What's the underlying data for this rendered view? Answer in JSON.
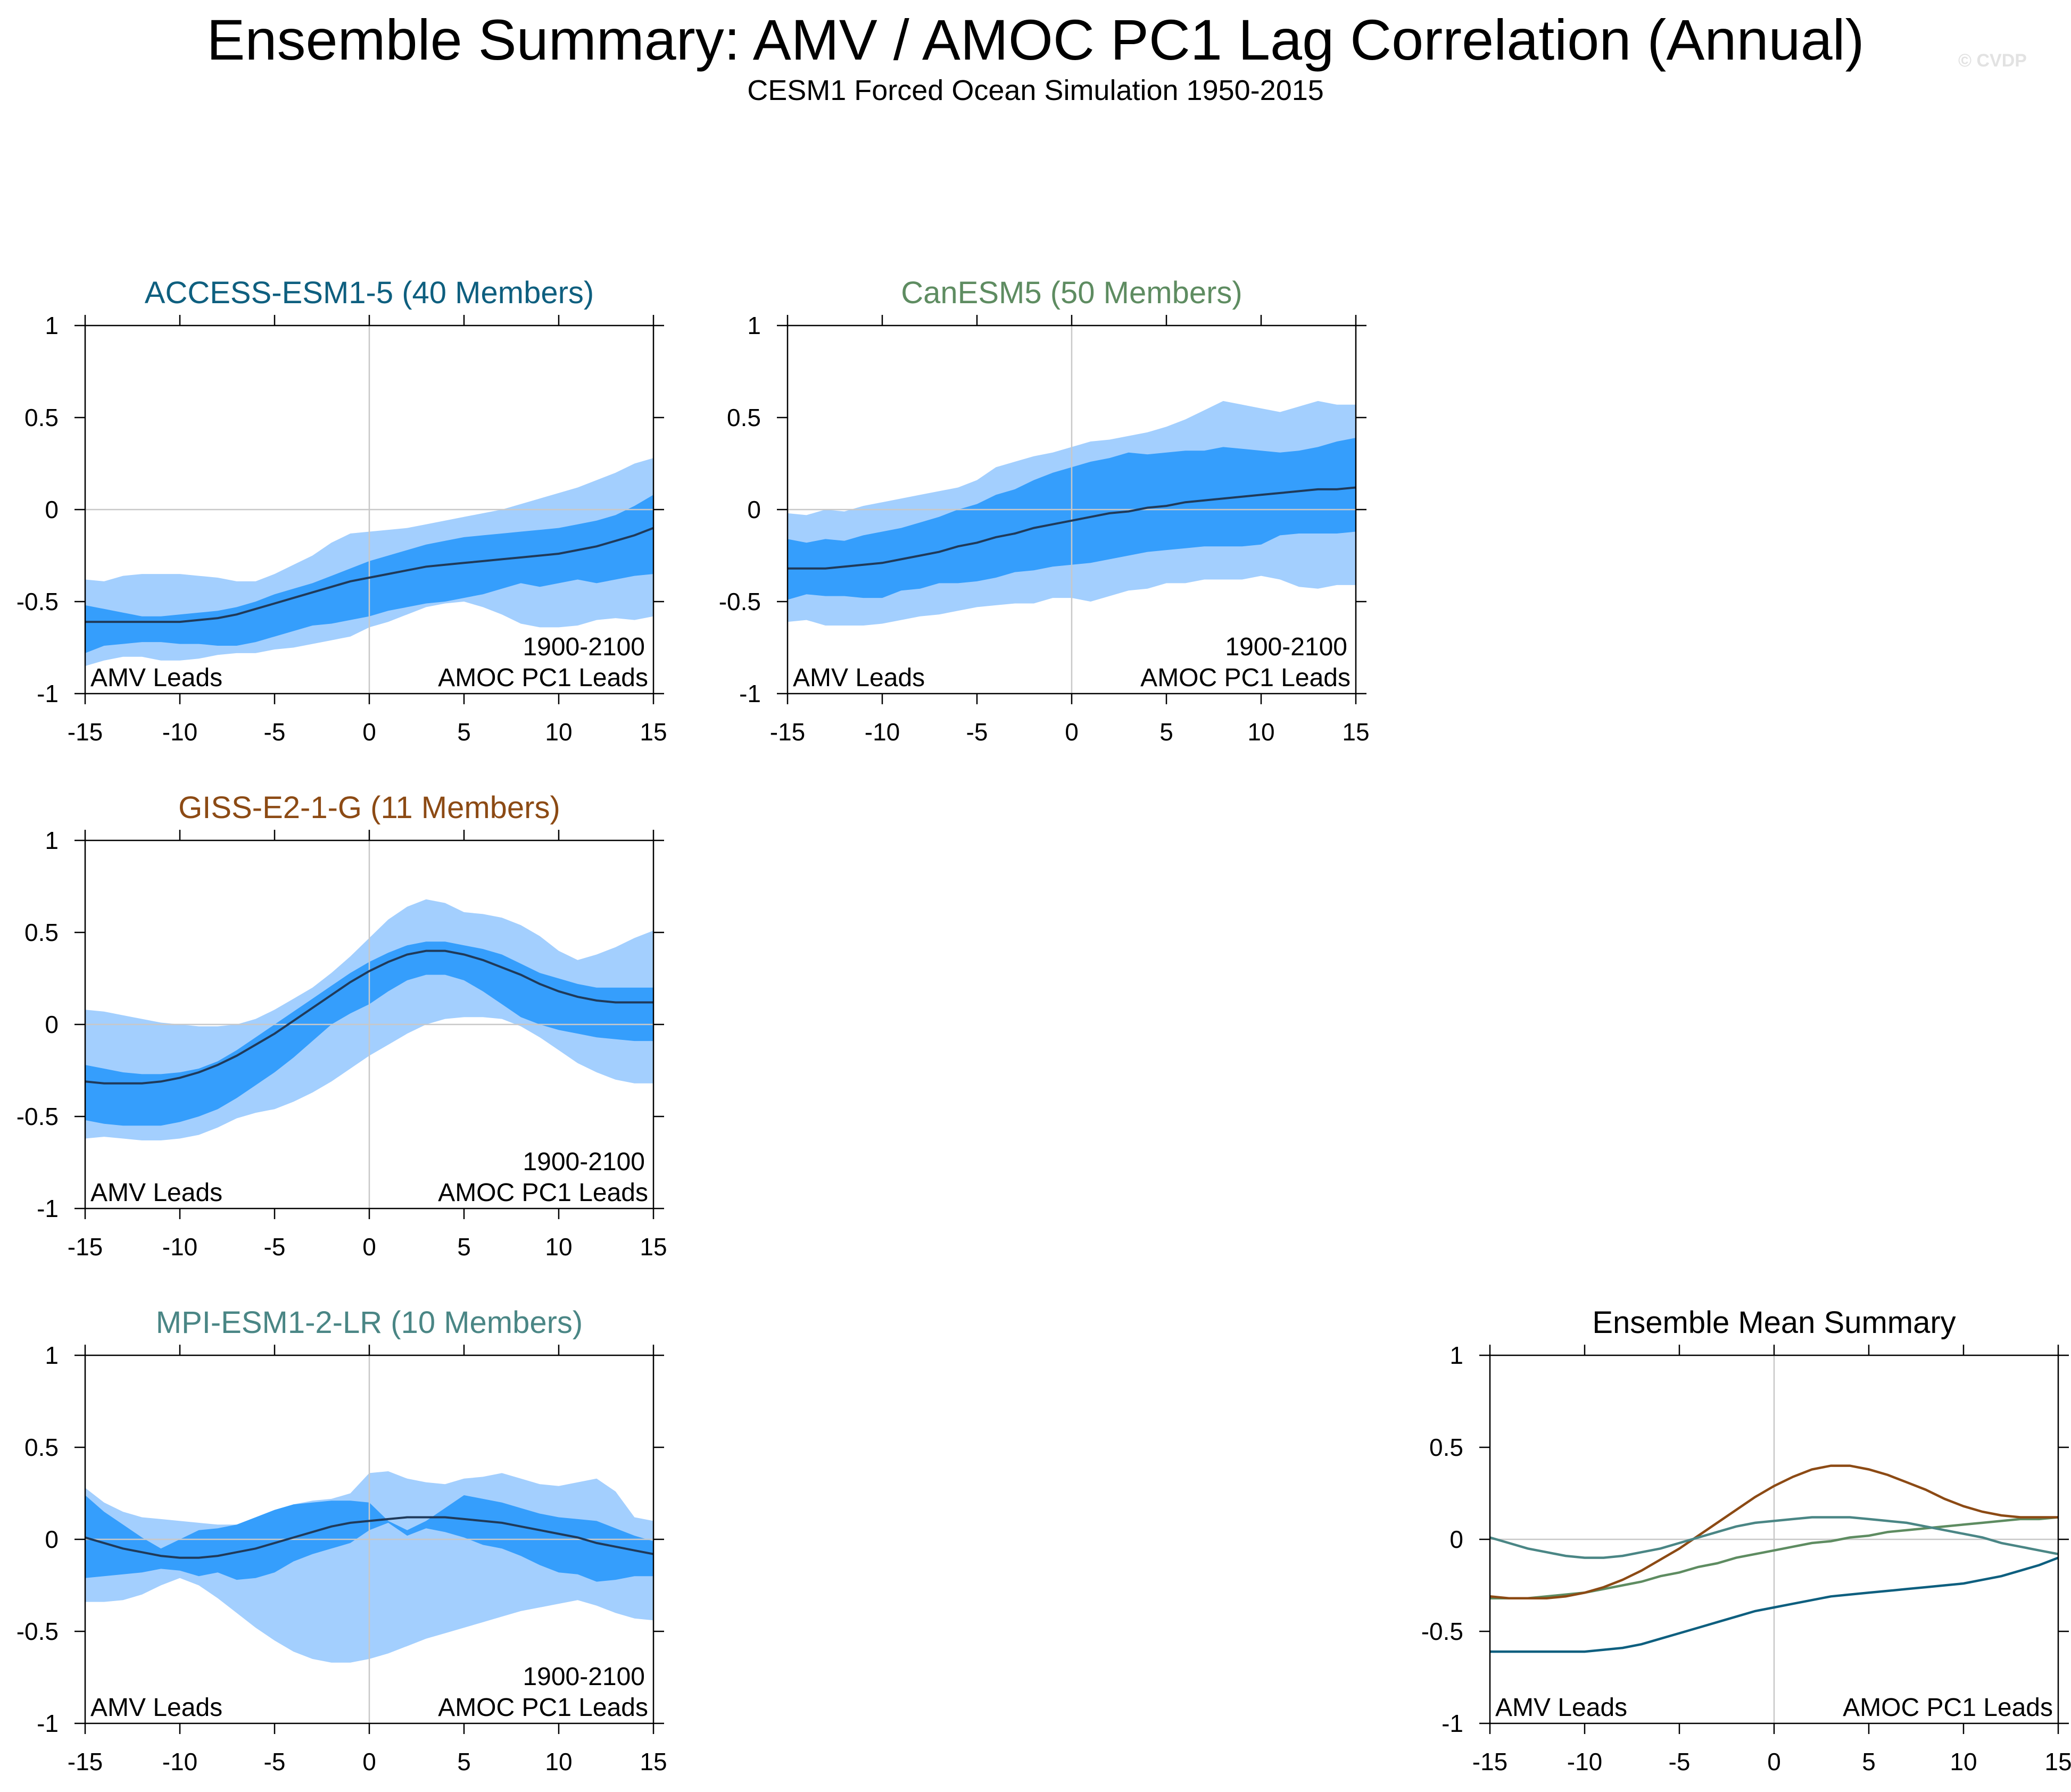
{
  "title": "Ensemble Summary: AMV / AMOC PC1 Lag Correlation (Annual)",
  "subtitle": "CESM1 Forced Ocean Simulation 1950-2015",
  "watermark": "© CVDP",
  "colors": {
    "outer_band": "#a3cffe",
    "inner_band": "#359efc",
    "mean_line": "#1f3a5a",
    "zero_line": "#c8c8c8",
    "frame": "#000000"
  },
  "chart_data": [
    {
      "id": "access",
      "type": "area",
      "title": "ACCESS-ESM1-5 (40 Members)",
      "title_color": "#0e5f7f",
      "period_label": "1900-2100",
      "left_label": "AMV Leads",
      "right_label": "AMOC PC1 Leads",
      "xlim": [
        -15,
        15
      ],
      "ylim": [
        -1,
        1
      ],
      "xticks": [
        -15,
        -10,
        -5,
        0,
        5,
        10,
        15
      ],
      "yticks": [
        1,
        0.5,
        0,
        -0.5,
        -1
      ],
      "x": [
        -15,
        -14,
        -13,
        -12,
        -11,
        -10,
        -9,
        -8,
        -7,
        -6,
        -5,
        -4,
        -3,
        -2,
        -1,
        0,
        1,
        2,
        3,
        4,
        5,
        6,
        7,
        8,
        9,
        10,
        11,
        12,
        13,
        14,
        15
      ],
      "outer_upper": [
        -0.38,
        -0.39,
        -0.36,
        -0.35,
        -0.35,
        -0.35,
        -0.36,
        -0.37,
        -0.39,
        -0.39,
        -0.35,
        -0.3,
        -0.25,
        -0.18,
        -0.13,
        -0.12,
        -0.11,
        -0.1,
        -0.08,
        -0.06,
        -0.04,
        -0.02,
        0.0,
        0.03,
        0.06,
        0.09,
        0.12,
        0.16,
        0.2,
        0.25,
        0.28
      ],
      "inner_upper": [
        -0.52,
        -0.54,
        -0.56,
        -0.58,
        -0.58,
        -0.57,
        -0.56,
        -0.55,
        -0.53,
        -0.5,
        -0.46,
        -0.43,
        -0.4,
        -0.36,
        -0.32,
        -0.28,
        -0.25,
        -0.22,
        -0.19,
        -0.17,
        -0.15,
        -0.14,
        -0.13,
        -0.12,
        -0.11,
        -0.1,
        -0.08,
        -0.06,
        -0.03,
        0.02,
        0.08
      ],
      "inner_lower": [
        -0.78,
        -0.74,
        -0.73,
        -0.72,
        -0.72,
        -0.73,
        -0.73,
        -0.74,
        -0.74,
        -0.72,
        -0.69,
        -0.66,
        -0.63,
        -0.62,
        -0.6,
        -0.58,
        -0.55,
        -0.53,
        -0.51,
        -0.5,
        -0.48,
        -0.46,
        -0.43,
        -0.4,
        -0.42,
        -0.4,
        -0.38,
        -0.4,
        -0.38,
        -0.36,
        -0.35
      ],
      "outer_lower": [
        -0.85,
        -0.82,
        -0.8,
        -0.8,
        -0.82,
        -0.82,
        -0.81,
        -0.79,
        -0.78,
        -0.78,
        -0.76,
        -0.75,
        -0.73,
        -0.71,
        -0.69,
        -0.64,
        -0.61,
        -0.57,
        -0.53,
        -0.51,
        -0.5,
        -0.53,
        -0.57,
        -0.62,
        -0.64,
        -0.64,
        -0.63,
        -0.6,
        -0.59,
        -0.6,
        -0.58
      ],
      "mean": [
        -0.61,
        -0.61,
        -0.61,
        -0.61,
        -0.61,
        -0.61,
        -0.6,
        -0.59,
        -0.57,
        -0.54,
        -0.51,
        -0.48,
        -0.45,
        -0.42,
        -0.39,
        -0.37,
        -0.35,
        -0.33,
        -0.31,
        -0.3,
        -0.29,
        -0.28,
        -0.27,
        -0.26,
        -0.25,
        -0.24,
        -0.22,
        -0.2,
        -0.17,
        -0.14,
        -0.1
      ]
    },
    {
      "id": "canesm",
      "type": "area",
      "title": "CanESM5 (50 Members)",
      "title_color": "#5e8c61",
      "period_label": "1900-2100",
      "left_label": "AMV Leads",
      "right_label": "AMOC PC1 Leads",
      "xlim": [
        -15,
        15
      ],
      "ylim": [
        -1,
        1
      ],
      "xticks": [
        -15,
        -10,
        -5,
        0,
        5,
        10,
        15
      ],
      "yticks": [
        1,
        0.5,
        0,
        -0.5,
        -1
      ],
      "x": [
        -15,
        -14,
        -13,
        -12,
        -11,
        -10,
        -9,
        -8,
        -7,
        -6,
        -5,
        -4,
        -3,
        -2,
        -1,
        0,
        1,
        2,
        3,
        4,
        5,
        6,
        7,
        8,
        9,
        10,
        11,
        12,
        13,
        14,
        15
      ],
      "outer_upper": [
        -0.02,
        -0.03,
        0.0,
        -0.01,
        0.02,
        0.04,
        0.06,
        0.08,
        0.1,
        0.12,
        0.16,
        0.23,
        0.26,
        0.29,
        0.31,
        0.34,
        0.37,
        0.38,
        0.4,
        0.42,
        0.45,
        0.49,
        0.54,
        0.59,
        0.57,
        0.55,
        0.53,
        0.56,
        0.59,
        0.57,
        0.57
      ],
      "inner_upper": [
        -0.16,
        -0.18,
        -0.16,
        -0.17,
        -0.14,
        -0.12,
        -0.1,
        -0.07,
        -0.04,
        0.0,
        0.03,
        0.08,
        0.11,
        0.16,
        0.2,
        0.23,
        0.26,
        0.28,
        0.31,
        0.3,
        0.31,
        0.32,
        0.32,
        0.34,
        0.33,
        0.32,
        0.31,
        0.32,
        0.34,
        0.37,
        0.39
      ],
      "inner_lower": [
        -0.49,
        -0.46,
        -0.47,
        -0.47,
        -0.48,
        -0.48,
        -0.44,
        -0.43,
        -0.4,
        -0.4,
        -0.39,
        -0.37,
        -0.34,
        -0.33,
        -0.31,
        -0.3,
        -0.29,
        -0.27,
        -0.25,
        -0.23,
        -0.22,
        -0.21,
        -0.2,
        -0.2,
        -0.2,
        -0.19,
        -0.14,
        -0.13,
        -0.13,
        -0.13,
        -0.12
      ],
      "outer_lower": [
        -0.61,
        -0.6,
        -0.63,
        -0.63,
        -0.63,
        -0.62,
        -0.6,
        -0.58,
        -0.57,
        -0.55,
        -0.53,
        -0.52,
        -0.51,
        -0.51,
        -0.48,
        -0.48,
        -0.5,
        -0.47,
        -0.44,
        -0.43,
        -0.4,
        -0.4,
        -0.38,
        -0.38,
        -0.38,
        -0.36,
        -0.38,
        -0.42,
        -0.43,
        -0.41,
        -0.41
      ],
      "mean": [
        -0.32,
        -0.32,
        -0.32,
        -0.31,
        -0.3,
        -0.29,
        -0.27,
        -0.25,
        -0.23,
        -0.2,
        -0.18,
        -0.15,
        -0.13,
        -0.1,
        -0.08,
        -0.06,
        -0.04,
        -0.02,
        -0.01,
        0.01,
        0.02,
        0.04,
        0.05,
        0.06,
        0.07,
        0.08,
        0.09,
        0.1,
        0.11,
        0.11,
        0.12
      ]
    },
    {
      "id": "giss",
      "type": "area",
      "title": "GISS-E2-1-G (11 Members)",
      "title_color": "#8c4a14",
      "period_label": "1900-2100",
      "left_label": "AMV Leads",
      "right_label": "AMOC PC1 Leads",
      "xlim": [
        -15,
        15
      ],
      "ylim": [
        -1,
        1
      ],
      "xticks": [
        -15,
        -10,
        -5,
        0,
        5,
        10,
        15
      ],
      "yticks": [
        1,
        0.5,
        0,
        -0.5,
        -1
      ],
      "x": [
        -15,
        -14,
        -13,
        -12,
        -11,
        -10,
        -9,
        -8,
        -7,
        -6,
        -5,
        -4,
        -3,
        -2,
        -1,
        0,
        1,
        2,
        3,
        4,
        5,
        6,
        7,
        8,
        9,
        10,
        11,
        12,
        13,
        14,
        15
      ],
      "outer_upper": [
        0.08,
        0.07,
        0.05,
        0.03,
        0.01,
        0.0,
        -0.01,
        -0.01,
        0.0,
        0.03,
        0.08,
        0.14,
        0.2,
        0.28,
        0.37,
        0.47,
        0.57,
        0.64,
        0.68,
        0.66,
        0.61,
        0.6,
        0.58,
        0.54,
        0.48,
        0.4,
        0.35,
        0.38,
        0.42,
        0.47,
        0.51
      ],
      "inner_upper": [
        -0.22,
        -0.24,
        -0.26,
        -0.27,
        -0.27,
        -0.26,
        -0.24,
        -0.2,
        -0.14,
        -0.07,
        0.0,
        0.07,
        0.14,
        0.21,
        0.28,
        0.34,
        0.39,
        0.43,
        0.45,
        0.45,
        0.43,
        0.41,
        0.38,
        0.33,
        0.28,
        0.25,
        0.22,
        0.2,
        0.2,
        0.2,
        0.2
      ],
      "inner_lower": [
        -0.52,
        -0.54,
        -0.55,
        -0.55,
        -0.55,
        -0.53,
        -0.5,
        -0.46,
        -0.4,
        -0.33,
        -0.26,
        -0.18,
        -0.09,
        0.0,
        0.06,
        0.11,
        0.18,
        0.24,
        0.27,
        0.27,
        0.24,
        0.18,
        0.11,
        0.04,
        0.0,
        -0.03,
        -0.05,
        -0.07,
        -0.08,
        -0.09,
        -0.09
      ],
      "outer_lower": [
        -0.62,
        -0.61,
        -0.62,
        -0.63,
        -0.63,
        -0.62,
        -0.6,
        -0.56,
        -0.51,
        -0.48,
        -0.46,
        -0.42,
        -0.37,
        -0.31,
        -0.24,
        -0.17,
        -0.11,
        -0.05,
        0.0,
        0.03,
        0.04,
        0.04,
        0.03,
        -0.01,
        -0.07,
        -0.14,
        -0.21,
        -0.26,
        -0.3,
        -0.32,
        -0.32
      ],
      "mean": [
        -0.31,
        -0.32,
        -0.32,
        -0.32,
        -0.31,
        -0.29,
        -0.26,
        -0.22,
        -0.17,
        -0.11,
        -0.05,
        0.02,
        0.09,
        0.16,
        0.23,
        0.29,
        0.34,
        0.38,
        0.4,
        0.4,
        0.38,
        0.35,
        0.31,
        0.27,
        0.22,
        0.18,
        0.15,
        0.13,
        0.12,
        0.12,
        0.12
      ]
    },
    {
      "id": "mpi",
      "type": "area",
      "title": "MPI-ESM1-2-LR (10 Members)",
      "title_color": "#4a8685",
      "period_label": "1900-2100",
      "left_label": "AMV Leads",
      "right_label": "AMOC PC1 Leads",
      "xlim": [
        -15,
        15
      ],
      "ylim": [
        -1,
        1
      ],
      "xticks": [
        -15,
        -10,
        -5,
        0,
        5,
        10,
        15
      ],
      "yticks": [
        1,
        0.5,
        0,
        -0.5,
        -1
      ],
      "x": [
        -15,
        -14,
        -13,
        -12,
        -11,
        -10,
        -9,
        -8,
        -7,
        -6,
        -5,
        -4,
        -3,
        -2,
        -1,
        0,
        1,
        2,
        3,
        4,
        5,
        6,
        7,
        8,
        9,
        10,
        11,
        12,
        13,
        14,
        15
      ],
      "outer_upper": [
        0.28,
        0.2,
        0.15,
        0.12,
        0.11,
        0.1,
        0.09,
        0.08,
        0.08,
        0.1,
        0.15,
        0.19,
        0.21,
        0.22,
        0.25,
        0.36,
        0.37,
        0.33,
        0.31,
        0.3,
        0.33,
        0.34,
        0.36,
        0.33,
        0.3,
        0.29,
        0.31,
        0.33,
        0.26,
        0.12,
        0.1
      ],
      "inner_upper": [
        0.24,
        0.15,
        0.08,
        0.01,
        -0.05,
        0.0,
        0.05,
        0.06,
        0.08,
        0.12,
        0.16,
        0.19,
        0.2,
        0.21,
        0.21,
        0.2,
        0.1,
        0.05,
        0.1,
        0.17,
        0.24,
        0.22,
        0.2,
        0.17,
        0.14,
        0.12,
        0.11,
        0.1,
        0.06,
        0.02,
        -0.01
      ],
      "inner_lower": [
        -0.21,
        -0.2,
        -0.19,
        -0.18,
        -0.16,
        -0.17,
        -0.2,
        -0.18,
        -0.22,
        -0.21,
        -0.18,
        -0.12,
        -0.08,
        -0.05,
        -0.02,
        0.05,
        0.09,
        0.02,
        0.06,
        0.04,
        0.01,
        -0.03,
        -0.05,
        -0.09,
        -0.14,
        -0.18,
        -0.19,
        -0.23,
        -0.22,
        -0.2,
        -0.2
      ],
      "outer_lower": [
        -0.34,
        -0.34,
        -0.33,
        -0.3,
        -0.25,
        -0.21,
        -0.25,
        -0.32,
        -0.4,
        -0.48,
        -0.55,
        -0.61,
        -0.65,
        -0.67,
        -0.67,
        -0.65,
        -0.62,
        -0.58,
        -0.54,
        -0.51,
        -0.48,
        -0.45,
        -0.42,
        -0.39,
        -0.37,
        -0.35,
        -0.33,
        -0.36,
        -0.4,
        -0.43,
        -0.44
      ],
      "mean": [
        0.01,
        -0.02,
        -0.05,
        -0.07,
        -0.09,
        -0.1,
        -0.1,
        -0.09,
        -0.07,
        -0.05,
        -0.02,
        0.01,
        0.04,
        0.07,
        0.09,
        0.1,
        0.11,
        0.12,
        0.12,
        0.12,
        0.11,
        0.1,
        0.09,
        0.07,
        0.05,
        0.03,
        0.01,
        -0.02,
        -0.04,
        -0.06,
        -0.08
      ]
    },
    {
      "id": "summary",
      "type": "line",
      "title": "Ensemble Mean Summary",
      "title_color": "#000000",
      "left_label": "AMV Leads",
      "right_label": "AMOC PC1 Leads",
      "xlim": [
        -15,
        15
      ],
      "ylim": [
        -1,
        1
      ],
      "xticks": [
        -15,
        -10,
        -5,
        0,
        5,
        10,
        15
      ],
      "yticks": [
        1,
        0.5,
        0,
        -0.5,
        -1
      ],
      "x": [
        -15,
        -14,
        -13,
        -12,
        -11,
        -10,
        -9,
        -8,
        -7,
        -6,
        -5,
        -4,
        -3,
        -2,
        -1,
        0,
        1,
        2,
        3,
        4,
        5,
        6,
        7,
        8,
        9,
        10,
        11,
        12,
        13,
        14,
        15
      ],
      "series": [
        {
          "name": "ACCESS-ESM1-5",
          "color": "#0e5f7f",
          "values": [
            -0.61,
            -0.61,
            -0.61,
            -0.61,
            -0.61,
            -0.61,
            -0.6,
            -0.59,
            -0.57,
            -0.54,
            -0.51,
            -0.48,
            -0.45,
            -0.42,
            -0.39,
            -0.37,
            -0.35,
            -0.33,
            -0.31,
            -0.3,
            -0.29,
            -0.28,
            -0.27,
            -0.26,
            -0.25,
            -0.24,
            -0.22,
            -0.2,
            -0.17,
            -0.14,
            -0.1
          ]
        },
        {
          "name": "CanESM5",
          "color": "#5e8c61",
          "values": [
            -0.32,
            -0.32,
            -0.32,
            -0.31,
            -0.3,
            -0.29,
            -0.27,
            -0.25,
            -0.23,
            -0.2,
            -0.18,
            -0.15,
            -0.13,
            -0.1,
            -0.08,
            -0.06,
            -0.04,
            -0.02,
            -0.01,
            0.01,
            0.02,
            0.04,
            0.05,
            0.06,
            0.07,
            0.08,
            0.09,
            0.1,
            0.11,
            0.11,
            0.12
          ]
        },
        {
          "name": "GISS-E2-1-G",
          "color": "#8c4a14",
          "values": [
            -0.31,
            -0.32,
            -0.32,
            -0.32,
            -0.31,
            -0.29,
            -0.26,
            -0.22,
            -0.17,
            -0.11,
            -0.05,
            0.02,
            0.09,
            0.16,
            0.23,
            0.29,
            0.34,
            0.38,
            0.4,
            0.4,
            0.38,
            0.35,
            0.31,
            0.27,
            0.22,
            0.18,
            0.15,
            0.13,
            0.12,
            0.12,
            0.12
          ]
        },
        {
          "name": "MPI-ESM1-2-LR",
          "color": "#4a8685",
          "values": [
            0.01,
            -0.02,
            -0.05,
            -0.07,
            -0.09,
            -0.1,
            -0.1,
            -0.09,
            -0.07,
            -0.05,
            -0.02,
            0.01,
            0.04,
            0.07,
            0.09,
            0.1,
            0.11,
            0.12,
            0.12,
            0.12,
            0.11,
            0.1,
            0.09,
            0.07,
            0.05,
            0.03,
            0.01,
            -0.02,
            -0.04,
            -0.06,
            -0.08
          ]
        }
      ]
    }
  ]
}
